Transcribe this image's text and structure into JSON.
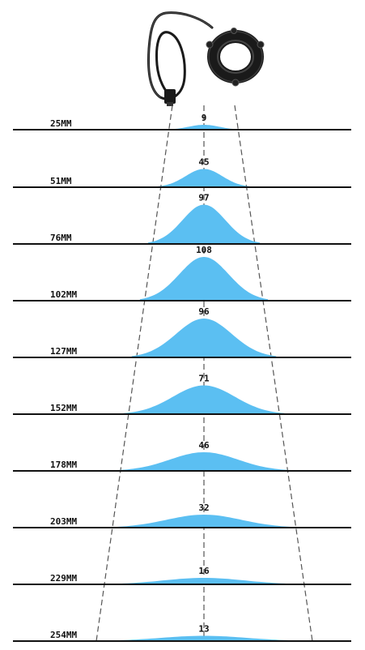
{
  "colors": {
    "background": "#ffffff",
    "beam_fill": "#5bbff2",
    "baseline": "#111111",
    "guide_line": "#555555",
    "device_body": "#1a1a1a"
  },
  "device": {
    "icon": "ring-light-icon"
  },
  "chart_data": {
    "type": "area",
    "unit": "MM",
    "rows": [
      {
        "distance": "25MM",
        "value": "9"
      },
      {
        "distance": "51MM",
        "value": "45"
      },
      {
        "distance": "76MM",
        "value": "97"
      },
      {
        "distance": "102MM",
        "value": "108"
      },
      {
        "distance": "127MM",
        "value": "96"
      },
      {
        "distance": "152MM",
        "value": "71"
      },
      {
        "distance": "178MM",
        "value": "46"
      },
      {
        "distance": "203MM",
        "value": "32"
      },
      {
        "distance": "229MM",
        "value": "16"
      },
      {
        "distance": "254MM",
        "value": "13"
      }
    ]
  }
}
